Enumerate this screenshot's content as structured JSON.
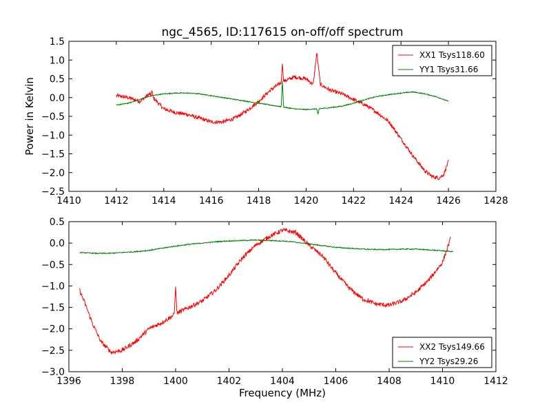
{
  "chart_data": [
    {
      "type": "line",
      "title": "ngc_4565, ID:117615 on-off/off spectrum",
      "xlabel": "",
      "ylabel": "Power in Kelvin",
      "xlim": [
        1410,
        1428
      ],
      "ylim": [
        -2.5,
        1.5
      ],
      "xticks": [
        "1410",
        "1412",
        "1414",
        "1416",
        "1418",
        "1420",
        "1422",
        "1424",
        "1426",
        "1428"
      ],
      "yticks": [
        "1.5",
        "1.0",
        "0.5",
        "0.0",
        "−0.5",
        "−1.0",
        "−1.5",
        "−2.0",
        "−2.5"
      ],
      "legend_position": "top-right",
      "grid": false,
      "series": [
        {
          "name": "XX1 Tsys118.60",
          "color": "#ff0000",
          "x": [
            1412.0,
            1412.5,
            1413.0,
            1413.4,
            1414.0,
            1414.5,
            1415.0,
            1415.5,
            1416.0,
            1416.5,
            1417.0,
            1417.5,
            1418.0,
            1418.5,
            1419.0,
            1419.5,
            1420.0,
            1420.3,
            1420.45,
            1420.6,
            1421.0,
            1421.5,
            1422.0,
            1422.5,
            1423.0,
            1423.5,
            1424.0,
            1424.5,
            1425.0,
            1425.3,
            1425.6,
            1425.8,
            1426.0
          ],
          "y": [
            0.05,
            0.0,
            -0.1,
            0.1,
            -0.3,
            -0.4,
            -0.45,
            -0.55,
            -0.65,
            -0.65,
            -0.55,
            -0.35,
            -0.1,
            0.2,
            0.42,
            0.55,
            0.5,
            0.35,
            1.2,
            0.35,
            0.2,
            0.1,
            -0.05,
            -0.2,
            -0.4,
            -0.65,
            -1.1,
            -1.55,
            -1.95,
            -2.1,
            -2.15,
            -2.05,
            -1.7
          ],
          "spikes": [
            {
              "x": 1419.0,
              "y": 0.9
            },
            {
              "x": 1413.5,
              "y": 0.2
            }
          ]
        },
        {
          "name": "YY1 Tsys31.66",
          "color": "#008000",
          "x": [
            1412.0,
            1412.5,
            1413.0,
            1413.5,
            1414.0,
            1414.5,
            1415.0,
            1415.5,
            1416.0,
            1416.5,
            1417.0,
            1417.5,
            1418.0,
            1418.5,
            1419.0,
            1419.5,
            1420.0,
            1420.5,
            1421.0,
            1421.5,
            1422.0,
            1422.5,
            1423.0,
            1423.5,
            1424.0,
            1424.5,
            1425.0,
            1425.5,
            1426.0
          ],
          "y": [
            -0.2,
            -0.15,
            -0.05,
            0.05,
            0.1,
            0.12,
            0.12,
            0.1,
            0.05,
            0.0,
            -0.05,
            -0.1,
            -0.15,
            -0.2,
            -0.25,
            -0.3,
            -0.32,
            -0.3,
            -0.27,
            -0.23,
            -0.15,
            -0.05,
            0.03,
            0.08,
            0.12,
            0.15,
            0.1,
            0.02,
            -0.1
          ],
          "spikes": [
            {
              "x": 1419.0,
              "y": 0.45
            },
            {
              "x": 1420.5,
              "y": -0.45
            }
          ]
        }
      ]
    },
    {
      "type": "line",
      "title": "",
      "xlabel": "Frequency (MHz)",
      "ylabel": "",
      "xlim": [
        1396,
        1412
      ],
      "ylim": [
        -3.0,
        0.5
      ],
      "xticks": [
        "1396",
        "1398",
        "1400",
        "1402",
        "1404",
        "1406",
        "1408",
        "1410",
        "1412"
      ],
      "yticks": [
        "0.5",
        "0.0",
        "−0.5",
        "−1.0",
        "−1.5",
        "−2.0",
        "−2.5",
        "−3.0"
      ],
      "legend_position": "bottom-right",
      "grid": false,
      "series": [
        {
          "name": "XX2 Tsys149.66",
          "color": "#ff0000",
          "x": [
            1396.4,
            1396.6,
            1396.9,
            1397.2,
            1397.6,
            1398.0,
            1398.5,
            1399.0,
            1399.5,
            1400.0,
            1400.5,
            1401.0,
            1401.5,
            1402.0,
            1402.5,
            1403.0,
            1403.5,
            1404.0,
            1404.5,
            1405.0,
            1405.5,
            1406.0,
            1406.5,
            1407.0,
            1407.5,
            1408.0,
            1408.5,
            1409.0,
            1409.5,
            1410.0,
            1410.3
          ],
          "y": [
            -1.1,
            -1.4,
            -1.9,
            -2.3,
            -2.55,
            -2.5,
            -2.3,
            -2.0,
            -1.85,
            -1.65,
            -1.5,
            -1.35,
            -1.1,
            -0.75,
            -0.35,
            -0.05,
            0.15,
            0.3,
            0.25,
            -0.05,
            -0.3,
            -0.7,
            -1.05,
            -1.3,
            -1.42,
            -1.45,
            -1.35,
            -1.15,
            -0.85,
            -0.45,
            0.1
          ],
          "spikes": [
            {
              "x": 1400.0,
              "y": -1.0
            }
          ]
        },
        {
          "name": "YY2 Tsys29.26",
          "color": "#008000",
          "x": [
            1396.4,
            1397.0,
            1397.5,
            1398.0,
            1398.5,
            1399.0,
            1399.5,
            1400.0,
            1400.5,
            1401.0,
            1401.5,
            1402.0,
            1402.5,
            1403.0,
            1403.5,
            1404.0,
            1404.5,
            1405.0,
            1405.5,
            1406.0,
            1406.5,
            1407.0,
            1407.5,
            1408.0,
            1408.5,
            1409.0,
            1409.5,
            1410.0,
            1410.4
          ],
          "y": [
            -0.22,
            -0.24,
            -0.24,
            -0.22,
            -0.2,
            -0.17,
            -0.12,
            -0.07,
            -0.03,
            0.0,
            0.03,
            0.05,
            0.06,
            0.07,
            0.06,
            0.05,
            0.02,
            -0.02,
            -0.06,
            -0.1,
            -0.12,
            -0.14,
            -0.15,
            -0.15,
            -0.14,
            -0.14,
            -0.16,
            -0.18,
            -0.2
          ],
          "spikes": []
        }
      ]
    }
  ]
}
